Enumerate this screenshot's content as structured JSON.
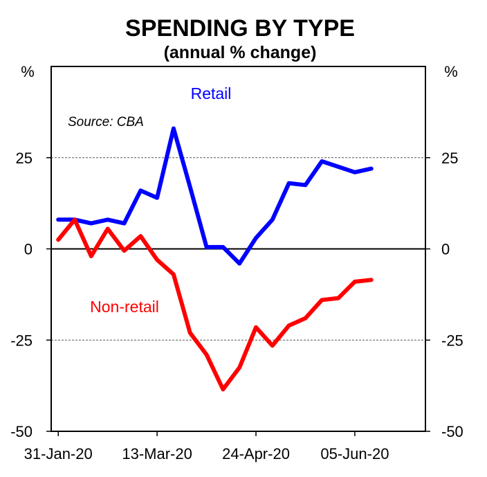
{
  "chart_data": {
    "type": "line",
    "title": "SPENDING BY TYPE",
    "subtitle": "(annual % change)",
    "left_unit": "%",
    "right_unit": "%",
    "source": "Source: CBA",
    "ylim": [
      -50,
      50
    ],
    "yticks": [
      25,
      0,
      -25,
      -50
    ],
    "grid": "dashed at 25 and -25",
    "zero_line": true,
    "xlim": [
      "2020-01-28",
      "2020-07-05"
    ],
    "xticks": [
      "31-Jan-20",
      "13-Mar-20",
      "24-Apr-20",
      "05-Jun-20"
    ],
    "xtick_dates": [
      "2020-01-31",
      "2020-03-13",
      "2020-04-24",
      "2020-06-05"
    ],
    "series": [
      {
        "name": "Retail",
        "color": "#0000ff",
        "x": [
          "2020-01-31",
          "2020-02-07",
          "2020-02-14",
          "2020-02-21",
          "2020-02-28",
          "2020-03-06",
          "2020-03-13",
          "2020-03-20",
          "2020-03-27",
          "2020-04-03",
          "2020-04-10",
          "2020-04-17",
          "2020-04-24",
          "2020-05-01",
          "2020-05-08",
          "2020-05-15",
          "2020-05-22",
          "2020-05-29",
          "2020-06-05",
          "2020-06-12"
        ],
        "values": [
          8,
          8,
          7,
          8,
          7,
          16,
          14,
          33,
          17,
          0.5,
          0.5,
          -4,
          3,
          8,
          18,
          17.5,
          24,
          22.5,
          21,
          22
        ]
      },
      {
        "name": "Non-retail",
        "color": "#ff0000",
        "x": [
          "2020-01-31",
          "2020-02-07",
          "2020-02-14",
          "2020-02-21",
          "2020-02-28",
          "2020-03-06",
          "2020-03-13",
          "2020-03-20",
          "2020-03-27",
          "2020-04-03",
          "2020-04-10",
          "2020-04-17",
          "2020-04-24",
          "2020-05-01",
          "2020-05-08",
          "2020-05-15",
          "2020-05-22",
          "2020-05-29",
          "2020-06-05",
          "2020-06-12"
        ],
        "values": [
          2.5,
          8,
          -2,
          5.5,
          -0.5,
          3.5,
          -3,
          -7,
          -23,
          -29,
          -38.5,
          -32.5,
          -21.5,
          -26.5,
          -21,
          -19,
          -14,
          -13.5,
          -9,
          -8.5
        ]
      }
    ]
  }
}
